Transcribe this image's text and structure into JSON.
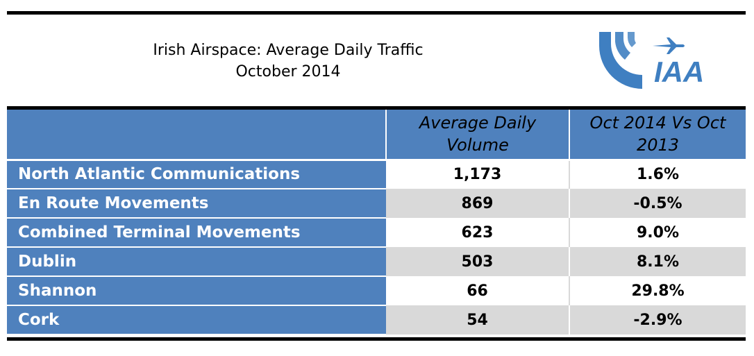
{
  "title": {
    "line1": "Irish Airspace: Average Daily Traffic",
    "line2": "October 2014"
  },
  "logo": {
    "text": "IAA",
    "icon": "airplane-icon",
    "color": "#3f7fc1"
  },
  "table": {
    "headers": {
      "label": "",
      "volume": "Average Daily Volume",
      "change": "Oct 2014 Vs Oct 2013"
    },
    "rows": [
      {
        "label": "North Atlantic Communications",
        "volume": "1,173",
        "change": "1.6%"
      },
      {
        "label": "En Route Movements",
        "volume": "869",
        "change": "-0.5%"
      },
      {
        "label": "Combined Terminal Movements",
        "volume": "623",
        "change": "9.0%"
      },
      {
        "label": "Dublin",
        "volume": "503",
        "change": "8.1%"
      },
      {
        "label": "Shannon",
        "volume": "66",
        "change": "29.8%"
      },
      {
        "label": "Cork",
        "volume": "54",
        "change": "-2.9%"
      }
    ]
  },
  "colors": {
    "header_blue": "#4f81bd",
    "row_gray": "#d9d9d9",
    "rule": "#000000"
  }
}
